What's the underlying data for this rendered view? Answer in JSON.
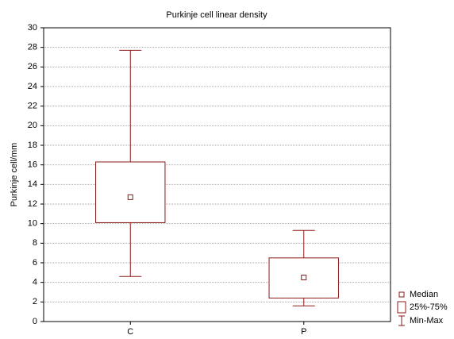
{
  "chart_data": {
    "type": "box",
    "title": "Purkinje cell linear density",
    "y_label": "Purkinje cell/mm",
    "categories": [
      "C",
      "P"
    ],
    "median": [
      12.7,
      4.5
    ],
    "q1": [
      10.1,
      2.4
    ],
    "q3": [
      16.3,
      6.5
    ],
    "min": [
      4.6,
      1.6
    ],
    "max": [
      27.7,
      9.3
    ],
    "color": "#8b1a1a",
    "legend_labels": [
      "Median",
      "25%-75%",
      "Min-Max"
    ],
    "legend_position": "lower right",
    "ylim": [
      0,
      30
    ],
    "yticks": [
      0,
      2,
      4,
      6,
      8,
      10,
      12,
      14,
      16,
      18,
      20,
      22,
      24,
      26,
      28,
      30
    ],
    "grid": true
  }
}
